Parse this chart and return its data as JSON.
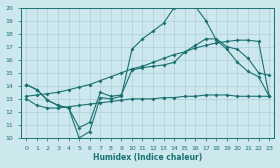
{
  "xlabel": "Humidex (Indice chaleur)",
  "bg_color": "#cce8ec",
  "grid_color": "#aacfd6",
  "line_color": "#1a7070",
  "xlim": [
    -0.5,
    23.5
  ],
  "ylim": [
    10,
    20
  ],
  "xticks": [
    0,
    1,
    2,
    3,
    4,
    5,
    6,
    7,
    8,
    9,
    10,
    11,
    12,
    13,
    14,
    15,
    16,
    17,
    18,
    19,
    20,
    21,
    22,
    23
  ],
  "yticks": [
    10,
    11,
    12,
    13,
    14,
    15,
    16,
    17,
    18,
    19,
    20
  ],
  "line_flat_x": [
    0,
    1,
    2,
    3,
    4,
    5,
    6,
    7,
    8,
    9,
    10,
    11,
    12,
    13,
    14,
    15,
    16,
    17,
    18,
    19,
    20,
    21,
    22,
    23
  ],
  "line_flat_y": [
    13.0,
    12.5,
    12.3,
    12.3,
    12.4,
    12.5,
    12.6,
    12.7,
    12.8,
    12.9,
    13.0,
    13.0,
    13.0,
    13.1,
    13.1,
    13.2,
    13.2,
    13.3,
    13.3,
    13.3,
    13.2,
    13.2,
    13.2,
    13.2
  ],
  "line_diag_x": [
    0,
    1,
    2,
    3,
    4,
    5,
    6,
    7,
    8,
    9,
    10,
    11,
    12,
    13,
    14,
    15,
    16,
    17,
    18,
    19,
    20,
    21,
    22,
    23
  ],
  "line_diag_y": [
    13.2,
    13.3,
    13.4,
    13.5,
    13.7,
    13.9,
    14.1,
    14.4,
    14.7,
    15.0,
    15.3,
    15.5,
    15.8,
    16.1,
    16.4,
    16.6,
    16.9,
    17.1,
    17.3,
    17.4,
    17.5,
    17.5,
    17.4,
    13.2
  ],
  "line_peak_x": [
    0,
    1,
    2,
    3,
    4,
    5,
    6,
    7,
    8,
    9,
    10,
    11,
    12,
    13,
    14,
    15,
    16,
    17,
    18,
    19,
    20,
    21,
    22,
    23
  ],
  "line_peak_y": [
    14.1,
    13.7,
    12.9,
    12.5,
    12.3,
    10.0,
    10.5,
    13.1,
    13.0,
    13.2,
    16.8,
    17.6,
    18.2,
    18.8,
    20.0,
    20.1,
    20.1,
    19.0,
    17.5,
    16.8,
    15.8,
    15.1,
    14.7,
    13.2
  ],
  "line_mid_x": [
    0,
    1,
    2,
    3,
    4,
    5,
    6,
    7,
    8,
    9,
    10,
    11,
    12,
    13,
    14,
    15,
    16,
    17,
    18,
    19,
    20,
    21,
    22,
    23
  ],
  "line_mid_y": [
    14.1,
    13.7,
    12.9,
    12.5,
    12.3,
    10.8,
    11.2,
    13.5,
    13.2,
    13.3,
    15.2,
    15.4,
    15.5,
    15.6,
    15.8,
    16.6,
    17.1,
    17.6,
    17.6,
    17.0,
    16.8,
    16.1,
    15.0,
    14.8
  ]
}
